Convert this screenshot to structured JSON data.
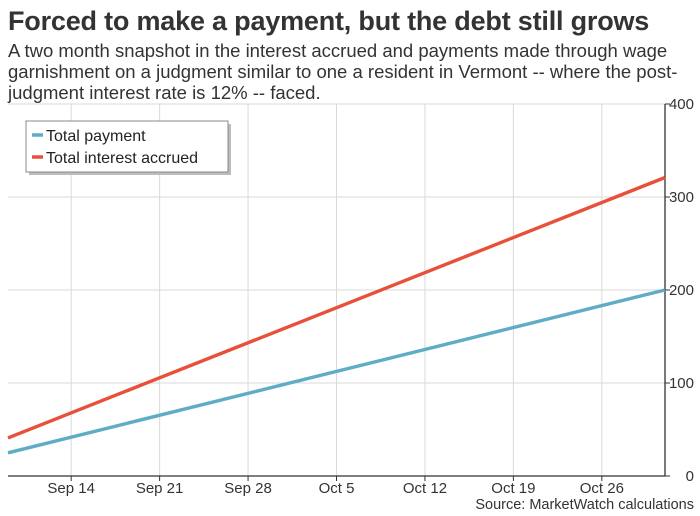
{
  "header": {
    "title": "Forced to make a payment, but the debt still grows",
    "subtitle": "A two month snapshot in the interest accrued and payments made through wage garnishment on a judgment similar to one a resident in Vermont -- where the post-judgment interest rate is 12% -- faced.",
    "source": "Source: MarketWatch calculations"
  },
  "colors": {
    "total_payment": "#5eacc5",
    "total_interest": "#e8503a",
    "grid": "#d9d9d9",
    "axis": "#333333"
  },
  "chart_data": {
    "type": "line",
    "title": "Forced to make a payment, but the debt still grows",
    "x_tick_labels": [
      "Sep 14",
      "Sep 21",
      "Sep 28",
      "Oct 5",
      "Oct 12",
      "Oct 19",
      "Oct 26"
    ],
    "y_tick_labels": [
      "0",
      "100",
      "200",
      "300",
      "400"
    ],
    "xlim": [
      "Sep 9",
      "Oct 31"
    ],
    "ylim": [
      0,
      400
    ],
    "y_axis_side": "right",
    "grid": true,
    "legend_position": "top-left",
    "series": [
      {
        "name": "Total payment",
        "color": "#5eacc5",
        "x": [
          "Sep 9",
          "Oct 31"
        ],
        "y": [
          25,
          200
        ]
      },
      {
        "name": "Total interest accrued",
        "color": "#e8503a",
        "x": [
          "Sep 9",
          "Oct 31"
        ],
        "y": [
          41,
          321
        ]
      }
    ]
  }
}
